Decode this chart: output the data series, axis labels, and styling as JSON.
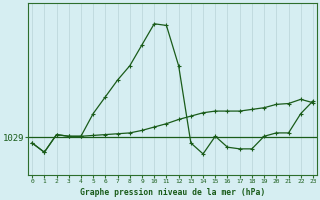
{
  "title": "Graphe pression niveau de la mer (hPa)",
  "x_values": [
    0,
    1,
    2,
    3,
    4,
    5,
    6,
    7,
    8,
    9,
    10,
    11,
    12,
    13,
    14,
    15,
    16,
    17,
    18,
    19,
    20,
    21,
    22,
    23
  ],
  "line1_y": [
    1028.3,
    1027.2,
    1029.3,
    1029.1,
    1029.1,
    1031.8,
    1033.8,
    1035.8,
    1037.5,
    1040.0,
    1042.5,
    1042.3,
    1037.5,
    1028.3,
    1027.0,
    1029.1,
    1027.8,
    1027.6,
    1027.6,
    1029.1,
    1029.5,
    1029.5,
    1031.8,
    1033.3
  ],
  "line2_y": [
    1028.3,
    1027.2,
    1029.3,
    1029.1,
    1029.1,
    1029.2,
    1029.3,
    1029.4,
    1029.5,
    1029.8,
    1030.2,
    1030.6,
    1031.1,
    1031.5,
    1031.9,
    1032.1,
    1032.1,
    1032.1,
    1032.3,
    1032.5,
    1032.9,
    1033.0,
    1033.5,
    1033.1
  ],
  "y_label": "1029",
  "y_ref": 1029.0,
  "background_color": "#d6eef2",
  "line_color": "#1a5c1a",
  "grid_color": "#b8d4d8",
  "axis_color": "#2d6e2d",
  "text_color": "#1a5c1a",
  "ylim_min": 1024.5,
  "ylim_max": 1045.0,
  "xlim_min": -0.3,
  "xlim_max": 23.3
}
